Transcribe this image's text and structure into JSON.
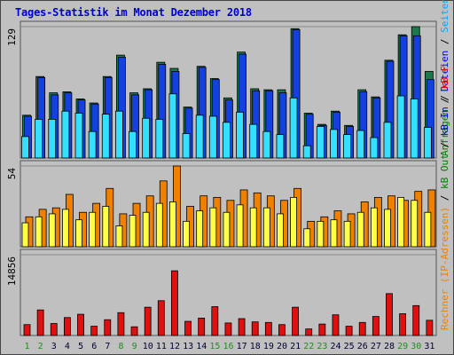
{
  "title": "Tages-Statistik im Monat Dezember 2018",
  "colors": {
    "background": "#c0c0c0",
    "title": "#0000cc",
    "anfragen": "#1a7a4c",
    "dateien": "#1440e0",
    "seiten": "#33e0ff",
    "besuche": "#f08000",
    "rechner": "#ffff44",
    "kb": "#e01010",
    "weekday_label": "#008000",
    "weekend_label": "#228b22"
  },
  "legend": {
    "right_top": [
      {
        "text": "Anfragen",
        "color": "#008000"
      },
      {
        "text": " / ",
        "color": "#000000"
      },
      {
        "text": "Dateien",
        "color": "#0000ff"
      },
      {
        "text": " / ",
        "color": "#000000"
      },
      {
        "text": "Seiten",
        "color": "#00aaff"
      },
      {
        "text": " / ",
        "color": "#000000"
      },
      {
        "text": "Besuche",
        "color": "#f08000"
      }
    ],
    "right_bottom": [
      {
        "text": "Rechner (IP-Adressen)",
        "color": "#f08000"
      },
      {
        "text": " / ",
        "color": "#000000"
      },
      {
        "text": "kB Out",
        "color": "#008000"
      },
      {
        "text": " / ",
        "color": "#000000"
      },
      {
        "text": "kB In",
        "color": "#0000ff"
      },
      {
        "text": " / ",
        "color": "#000000"
      },
      {
        "text": "kB F",
        "color": "#e01010"
      }
    ]
  },
  "chart_data": {
    "type": "bar",
    "title": "Tages-Statistik im Monat Dezember 2018",
    "x": [
      "1",
      "2",
      "3",
      "4",
      "5",
      "6",
      "7",
      "8",
      "9",
      "10",
      "11",
      "12",
      "13",
      "14",
      "15",
      "16",
      "17",
      "18",
      "19",
      "20",
      "21",
      "22",
      "23",
      "24",
      "25",
      "26",
      "27",
      "28",
      "29",
      "30",
      "31"
    ],
    "weekend_days": [
      1,
      2,
      8,
      9,
      15,
      16,
      22,
      23,
      29,
      30
    ],
    "panels": [
      {
        "name": "top",
        "ymax_label": "129",
        "ylim": [
          0,
          129
        ],
        "series": [
          {
            "name": "Anfragen",
            "values": [
              42,
              80,
              64,
              65,
              58,
              54,
              80,
              101,
              64,
              68,
              94,
              88,
              50,
              90,
              78,
              59,
              104,
              68,
              67,
              67,
              127,
              44,
              33,
              46,
              32,
              67,
              60,
              96,
              121,
              129,
              85
            ]
          },
          {
            "name": "Dateien",
            "values": [
              41,
              79,
              62,
              64,
              57,
              53,
              79,
              99,
              62,
              67,
              92,
              85,
              49,
              89,
              77,
              57,
              102,
              66,
              66,
              64,
              126,
              43,
              32,
              45,
              31,
              65,
              59,
              95,
              120,
              120,
              77
            ]
          },
          {
            "name": "Seiten",
            "values": [
              21,
              38,
              38,
              46,
              44,
              26,
              43,
              46,
              26,
              39,
              38,
              63,
              24,
              42,
              41,
              35,
              45,
              33,
              26,
              23,
              59,
              12,
              31,
              28,
              23,
              27,
              20,
              35,
              61,
              58,
              30
            ]
          }
        ]
      },
      {
        "name": "middle",
        "ymax_label": "54",
        "ylim": [
          0,
          54
        ],
        "series": [
          {
            "name": "Besuche",
            "values": [
              20,
              25,
              26,
              35,
              23,
              29,
              39,
              22,
              29,
              34,
              44,
              54,
              27,
              34,
              33,
              31,
              38,
              36,
              34,
              31,
              39,
              17,
              20,
              24,
              22,
              30,
              33,
              34,
              31,
              37,
              38
            ]
          },
          {
            "name": "Rechner",
            "values": [
              16,
              20,
              22,
              25,
              18,
              23,
              27,
              14,
              21,
              23,
              29,
              30,
              17,
              24,
              26,
              23,
              28,
              26,
              26,
              22,
              33,
              12,
              17,
              18,
              17,
              23,
              26,
              25,
              33,
              31,
              23
            ]
          }
        ]
      },
      {
        "name": "bottom",
        "ymax_label": "14856",
        "ylim": [
          0,
          14856
        ],
        "series": [
          {
            "name": "kB F",
            "values": [
              2000,
              4700,
              2200,
              3300,
              3900,
              1700,
              2900,
              4200,
              1600,
              5200,
              6400,
              11900,
              2600,
              3200,
              5300,
              2300,
              3100,
              2500,
              2400,
              2000,
              5200,
              1200,
              2100,
              3800,
              1700,
              2400,
              3500,
              7700,
              4000,
              5500,
              2800
            ]
          }
        ]
      }
    ]
  }
}
